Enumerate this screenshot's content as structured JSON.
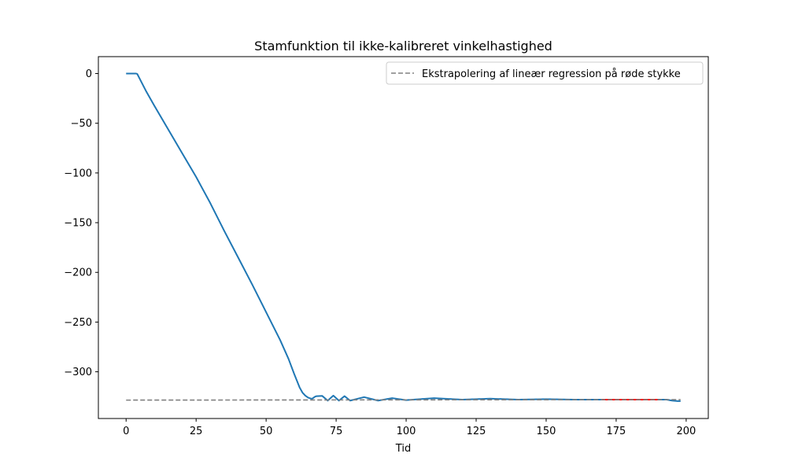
{
  "chart_data": {
    "type": "line",
    "title": "Stamfunktion til ikke-kalibreret vinkelhastighed",
    "xlabel": "Tid",
    "ylabel": "",
    "xlim": [
      -9.9,
      207.9
    ],
    "ylim": [
      -347,
      17
    ],
    "xticks": [
      0,
      25,
      50,
      75,
      100,
      125,
      150,
      175,
      200
    ],
    "yticks": [
      0,
      -50,
      -100,
      -150,
      -200,
      -250,
      -300
    ],
    "grid": false,
    "legend_position": "top-right",
    "series": [
      {
        "color": "#1f77b4",
        "style": "solid",
        "points": [
          [
            0,
            0
          ],
          [
            3.5,
            0
          ],
          [
            4,
            -0.5
          ],
          [
            5,
            -6
          ],
          [
            7,
            -17
          ],
          [
            10,
            -32
          ],
          [
            15,
            -56
          ],
          [
            20,
            -80
          ],
          [
            25,
            -104
          ],
          [
            30,
            -130
          ],
          [
            35,
            -158
          ],
          [
            40,
            -185
          ],
          [
            45,
            -212
          ],
          [
            50,
            -240
          ],
          [
            55,
            -268
          ],
          [
            58,
            -287
          ],
          [
            60,
            -302
          ],
          [
            62,
            -316
          ],
          [
            63,
            -321
          ],
          [
            64,
            -324
          ],
          [
            65,
            -326
          ],
          [
            66,
            -327
          ],
          [
            66.5,
            -327
          ],
          [
            67,
            -326
          ],
          [
            67.5,
            -325
          ],
          [
            68,
            -324.5
          ],
          [
            70,
            -324.2
          ],
          [
            72,
            -329
          ],
          [
            74,
            -324
          ],
          [
            76,
            -329
          ],
          [
            78,
            -324.5
          ],
          [
            80,
            -329
          ],
          [
            85,
            -325.5
          ],
          [
            90,
            -329
          ],
          [
            95,
            -326.5
          ],
          [
            100,
            -328.5
          ],
          [
            110,
            -326.5
          ],
          [
            120,
            -328
          ],
          [
            130,
            -327
          ],
          [
            140,
            -328
          ],
          [
            150,
            -327.5
          ],
          [
            160,
            -328
          ],
          [
            170,
            -328
          ],
          [
            180,
            -328
          ],
          [
            190,
            -328
          ],
          [
            193,
            -328
          ],
          [
            195,
            -329
          ],
          [
            197,
            -329.5
          ],
          [
            198,
            -329.5
          ]
        ]
      },
      {
        "color": "#ff0000",
        "style": "solid",
        "points": [
          [
            170,
            -328
          ],
          [
            190,
            -328
          ]
        ]
      },
      {
        "name": "Ekstrapolering af lineær regression på røde stykke",
        "color": "#808080",
        "style": "dashed",
        "points": [
          [
            0,
            -328.5
          ],
          [
            198,
            -328
          ]
        ]
      }
    ]
  }
}
